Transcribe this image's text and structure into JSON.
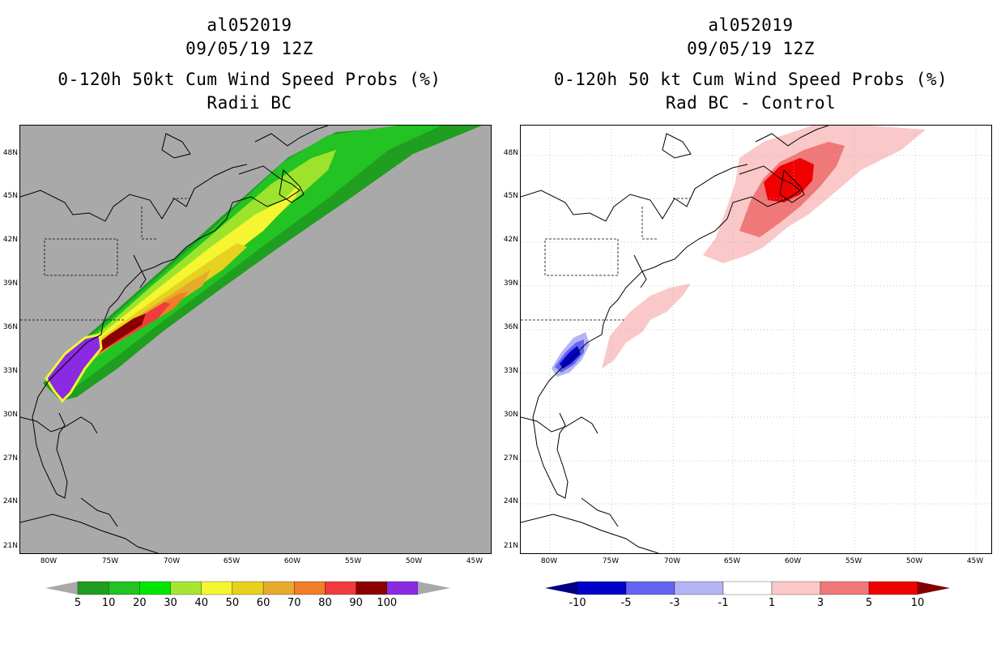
{
  "left_panel": {
    "title_line1": "al052019",
    "title_line2": "09/05/19 12Z",
    "title_line3": "0-120h 50kt Cum Wind Speed Probs (%)",
    "title_line4": "Radii BC",
    "background_color": "#a9a9a9",
    "colorbar": {
      "labels": [
        "5",
        "10",
        "20",
        "30",
        "40",
        "50",
        "60",
        "70",
        "80",
        "90",
        "100"
      ],
      "colors": [
        "#1f9e1f",
        "#22c322",
        "#00e600",
        "#a6e632",
        "#f5f532",
        "#e6d21e",
        "#e6aa2d",
        "#f07d28",
        "#f03c3c",
        "#8b0000",
        "#8a2be2"
      ],
      "under_color": "#a9a9a9",
      "over_color": "#a9a9a9"
    }
  },
  "right_panel": {
    "title_line1": "al052019",
    "title_line2": "09/05/19 12Z",
    "title_line3": "0-120h 50 kt Cum Wind Speed Probs (%)",
    "title_line4": "Rad BC - Control",
    "background_color": "#ffffff",
    "colorbar": {
      "labels": [
        "-10",
        "-5",
        "-3",
        "-1",
        "1",
        "3",
        "5",
        "10"
      ],
      "colors": [
        "#0000c8",
        "#6464f0",
        "#b4b4f5",
        "#ffffff",
        "#fac8c8",
        "#f07878",
        "#f00000"
      ],
      "under_color": "#000082",
      "over_color": "#820000"
    }
  },
  "axes": {
    "lat_labels": [
      "48N",
      "45N",
      "42N",
      "39N",
      "36N",
      "33N",
      "30N",
      "27N",
      "24N",
      "21N"
    ],
    "lon_labels": [
      "80W",
      "75W",
      "70W",
      "65W",
      "60W",
      "55W",
      "50W",
      "45W"
    ]
  }
}
